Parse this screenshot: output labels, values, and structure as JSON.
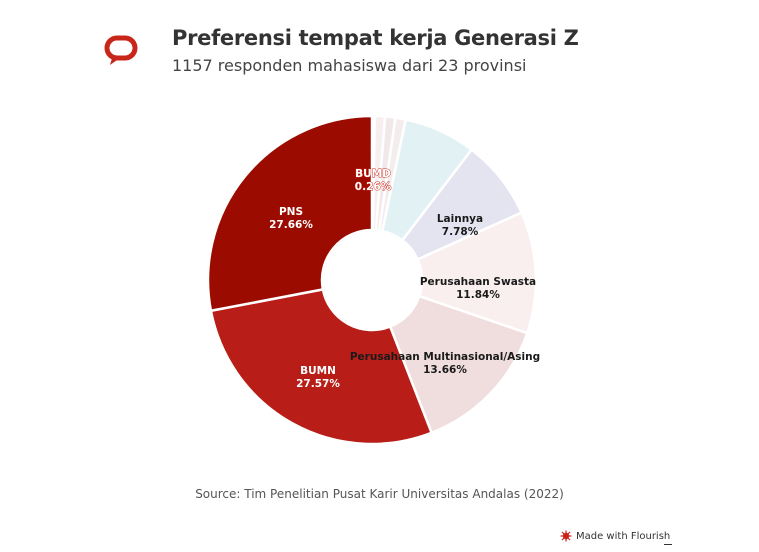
{
  "header": {
    "logo_icon": "speech-bubble-icon",
    "title": "Preferensi tempat kerja Generasi Z",
    "subtitle": "1157 responden mahasiswa dari 23 provinsi"
  },
  "footer": {
    "source": "Source: Tim Penelitian Pusat Karir Universitas Andalas (2022)",
    "flourish_badge": "Made with Flourish",
    "flourish_icon": "flourish-star-icon"
  },
  "chart_data": {
    "type": "pie",
    "title": "Preferensi tempat kerja Generasi Z",
    "subtitle": "1157 responden mahasiswa dari 23 provinsi",
    "unit": "%",
    "slices": [
      {
        "label": "BUMD",
        "value": 0.26,
        "value_label": "0.26%",
        "color": "#f5eeee"
      },
      {
        "label": "",
        "value": 1.0,
        "value_label": "",
        "color": "#f7efef"
      },
      {
        "label": "",
        "value": 1.0,
        "value_label": "",
        "color": "#f1e9e9"
      },
      {
        "label": "",
        "value": 1.0,
        "value_label": "",
        "color": "#f4eded"
      },
      {
        "label": "",
        "value": 7.0,
        "value_label": "",
        "color": "#e2f1f4"
      },
      {
        "label": "Lainnya",
        "value": 7.78,
        "value_label": "7.78%",
        "color": "#e3e4f0"
      },
      {
        "label": "Perusahaan Swasta",
        "value": 11.84,
        "value_label": "11.84%",
        "color": "#f9efef"
      },
      {
        "label": "Perusahaan Multinasional/Asing",
        "value": 13.66,
        "value_label": "13.66%",
        "color": "#f0dddd"
      },
      {
        "label": "BUMN",
        "value": 27.57,
        "value_label": "27.57%",
        "color": "#b81e17"
      },
      {
        "label": "PNS",
        "value": 27.66,
        "value_label": "27.66%",
        "color": "#9b0b00"
      }
    ]
  }
}
